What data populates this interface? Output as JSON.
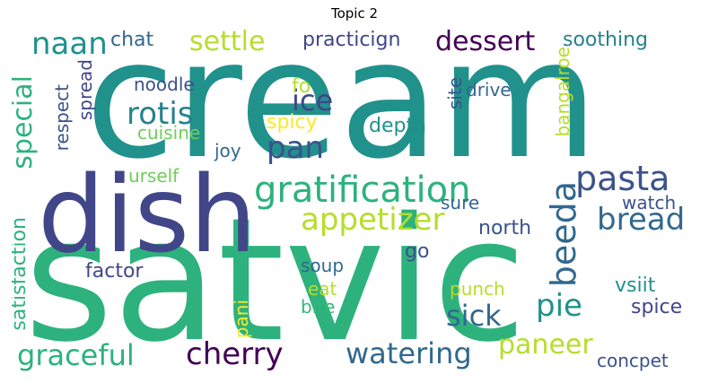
{
  "title": "Topic 2",
  "colors": {
    "purple": "#440154",
    "indigo": "#3b528b",
    "slate": "#404688",
    "blue": "#31688e",
    "teal": "#26828e",
    "teal2": "#21918c",
    "green": "#35b779",
    "green2": "#2db27d",
    "lime": "#6ece58",
    "yellowgreen": "#b5de2b",
    "yellow": "#fde725"
  },
  "words": {
    "cream": "cream",
    "satvic": "satvic",
    "dish": "dish",
    "gratification": "gratification",
    "appetizer": "appetizer",
    "pasta": "pasta",
    "bread": "bread",
    "beeda": "beeda",
    "special": "special",
    "rotis": "rotis",
    "naan": "naan",
    "settle": "settle",
    "dessert": "dessert",
    "practicign": "practicign",
    "chat": "chat",
    "soothing": "soothing",
    "pan": "pan",
    "ice": "ice",
    "fo": "fo",
    "spicy": "spicy",
    "noodle": "noodle",
    "cuisine": "cuisine",
    "joy": "joy",
    "urself": "urself",
    "respect": "respect",
    "spread": "spread",
    "depth": "depth",
    "drive": "drive",
    "site": "site",
    "bangalroe": "bangalroe",
    "watch": "watch",
    "sure": "sure",
    "north": "north",
    "go": "go",
    "factor": "factor",
    "satisfaction": "satisfaction",
    "soup": "soup",
    "eat": "eat",
    "pani": "pani",
    "bite": "bite",
    "punch": "punch",
    "sick": "sick",
    "pie": "pie",
    "vsiit": "vsiit",
    "spice": "spice",
    "graceful": "graceful",
    "cherry": "cherry",
    "watering": "watering",
    "paneer": "paneer",
    "concpet": "concpet"
  }
}
